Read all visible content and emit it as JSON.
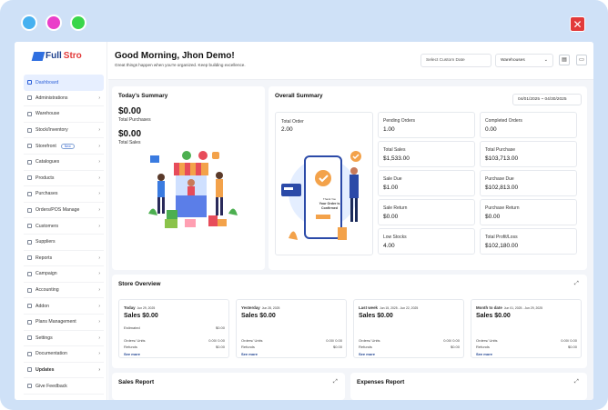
{
  "window": {
    "close_glyph": "✕"
  },
  "brand": {
    "logo_left": "Full",
    "logo_right": "Stro"
  },
  "sidebar": {
    "items": [
      {
        "label": "Dashboard",
        "icon": "dashboard-icon",
        "chevron": "",
        "active": true
      },
      {
        "label": "Administrations",
        "icon": "admin-icon",
        "chevron": "›"
      },
      {
        "label": "Warehouse",
        "icon": "warehouse-icon",
        "chevron": ""
      },
      {
        "label": "Stock/Inventory",
        "icon": "stock-icon",
        "chevron": "›"
      },
      {
        "label": "Storefront",
        "icon": "storefront-icon",
        "chevron": "›",
        "badge": "New"
      },
      {
        "label": "Catalogues",
        "icon": "catalogue-icon",
        "chevron": "›"
      },
      {
        "label": "Products",
        "icon": "products-icon",
        "chevron": "›"
      },
      {
        "label": "Purchases",
        "icon": "purchases-icon",
        "chevron": "›"
      },
      {
        "label": "Orders/POS Manage",
        "icon": "orders-icon",
        "chevron": "›"
      },
      {
        "label": "Customers",
        "icon": "customers-icon",
        "chevron": "›"
      },
      {
        "label": "Suppliers",
        "icon": "suppliers-icon",
        "chevron": ""
      },
      {
        "label": "Reports",
        "icon": "reports-icon",
        "chevron": "›"
      },
      {
        "label": "Campaign",
        "icon": "campaign-icon",
        "chevron": "›"
      },
      {
        "label": "Accounting",
        "icon": "accounting-icon",
        "chevron": "›"
      },
      {
        "label": "Addon",
        "icon": "addon-icon",
        "chevron": "›"
      },
      {
        "label": "Plans Management",
        "icon": "plans-icon",
        "chevron": "›"
      },
      {
        "label": "Settings",
        "icon": "settings-icon",
        "chevron": "›"
      },
      {
        "label": "Documentation",
        "icon": "documentation-icon",
        "chevron": "›"
      },
      {
        "label": "Updates",
        "icon": "updates-icon",
        "chevron": "›",
        "bold": true
      },
      {
        "label": "Give Feedback",
        "icon": "feedback-icon",
        "chevron": ""
      }
    ]
  },
  "header": {
    "greeting": "Good Morning, Jhon Demo!",
    "subtitle": "Great things happen when you're organized. Keep building excellence.",
    "date_placeholder": "Select Custom Date",
    "warehouse_select": "Warehouses"
  },
  "today_summary": {
    "title": "Today's Summary",
    "purchases_value": "$0.00",
    "purchases_label": "Total Purchases",
    "sales_value": "$0.00",
    "sales_label": "Total Sales"
  },
  "overall_summary": {
    "title": "Overall Summary",
    "date_range": "04/01/2025 ~ 04/30/2025",
    "total_order_label": "Total Order",
    "total_order_value": "2.00",
    "phone_text_1": "Thank You",
    "phone_text_2": "Your Order is Confirmed",
    "tiles": [
      {
        "label": "Pending Orders",
        "value": "1.00"
      },
      {
        "label": "Completed Orders",
        "value": "0.00"
      },
      {
        "label": "Total Sales",
        "value": "$1,533.00"
      },
      {
        "label": "Total Purchase",
        "value": "$103,713.00"
      },
      {
        "label": "Sale Due",
        "value": "$1.00"
      },
      {
        "label": "Purchase Due",
        "value": "$102,813.00"
      },
      {
        "label": "Sale Return",
        "value": "$0.00"
      },
      {
        "label": "Purchase Return",
        "value": "$0.00"
      },
      {
        "label": "Low Stocks",
        "value": "4.00"
      },
      {
        "label": "Total Profit/Loss",
        "value": "$102,180.00"
      }
    ]
  },
  "store_overview": {
    "title": "Store Overview",
    "expand_glyph": "⤢",
    "periods": [
      {
        "name": "Today",
        "date": "Jun 29, 2025",
        "sales": "Sales  $0.00",
        "first_label": "Estimated",
        "first_value": "$0.00",
        "orders_label": "Orders/ Units",
        "orders_value": "0.00/ 0.00",
        "refunds_label": "Refunds",
        "refunds_value": "$0.00",
        "see_more": "See more"
      },
      {
        "name": "Yesterday",
        "date": "Jun 28, 2025",
        "sales": "Sales  $0.00",
        "first_label": "",
        "first_value": "",
        "orders_label": "Orders/ Units",
        "orders_value": "0.00/ 0.00",
        "refunds_label": "Refunds",
        "refunds_value": "$0.00",
        "see_more": "See more"
      },
      {
        "name": "Last week",
        "date": "Jun 15, 2025 - Jun 22, 2025",
        "sales": "Sales  $0.00",
        "first_label": "",
        "first_value": "",
        "orders_label": "Orders/ Units",
        "orders_value": "0.00/ 0.00",
        "refunds_label": "Refunds",
        "refunds_value": "$0.00",
        "see_more": "See more"
      },
      {
        "name": "Month to date",
        "date": "Jun 01, 2025 - Jun 29, 2025",
        "sales": "Sales  $0.00",
        "first_label": "",
        "first_value": "",
        "orders_label": "Orders/ Units",
        "orders_value": "0.00/ 0.00",
        "refunds_label": "Refunds",
        "refunds_value": "$0.00",
        "see_more": "See more"
      }
    ]
  },
  "sales_report": {
    "title": "Sales Report"
  },
  "expenses_report": {
    "title": "Expenses Report"
  }
}
